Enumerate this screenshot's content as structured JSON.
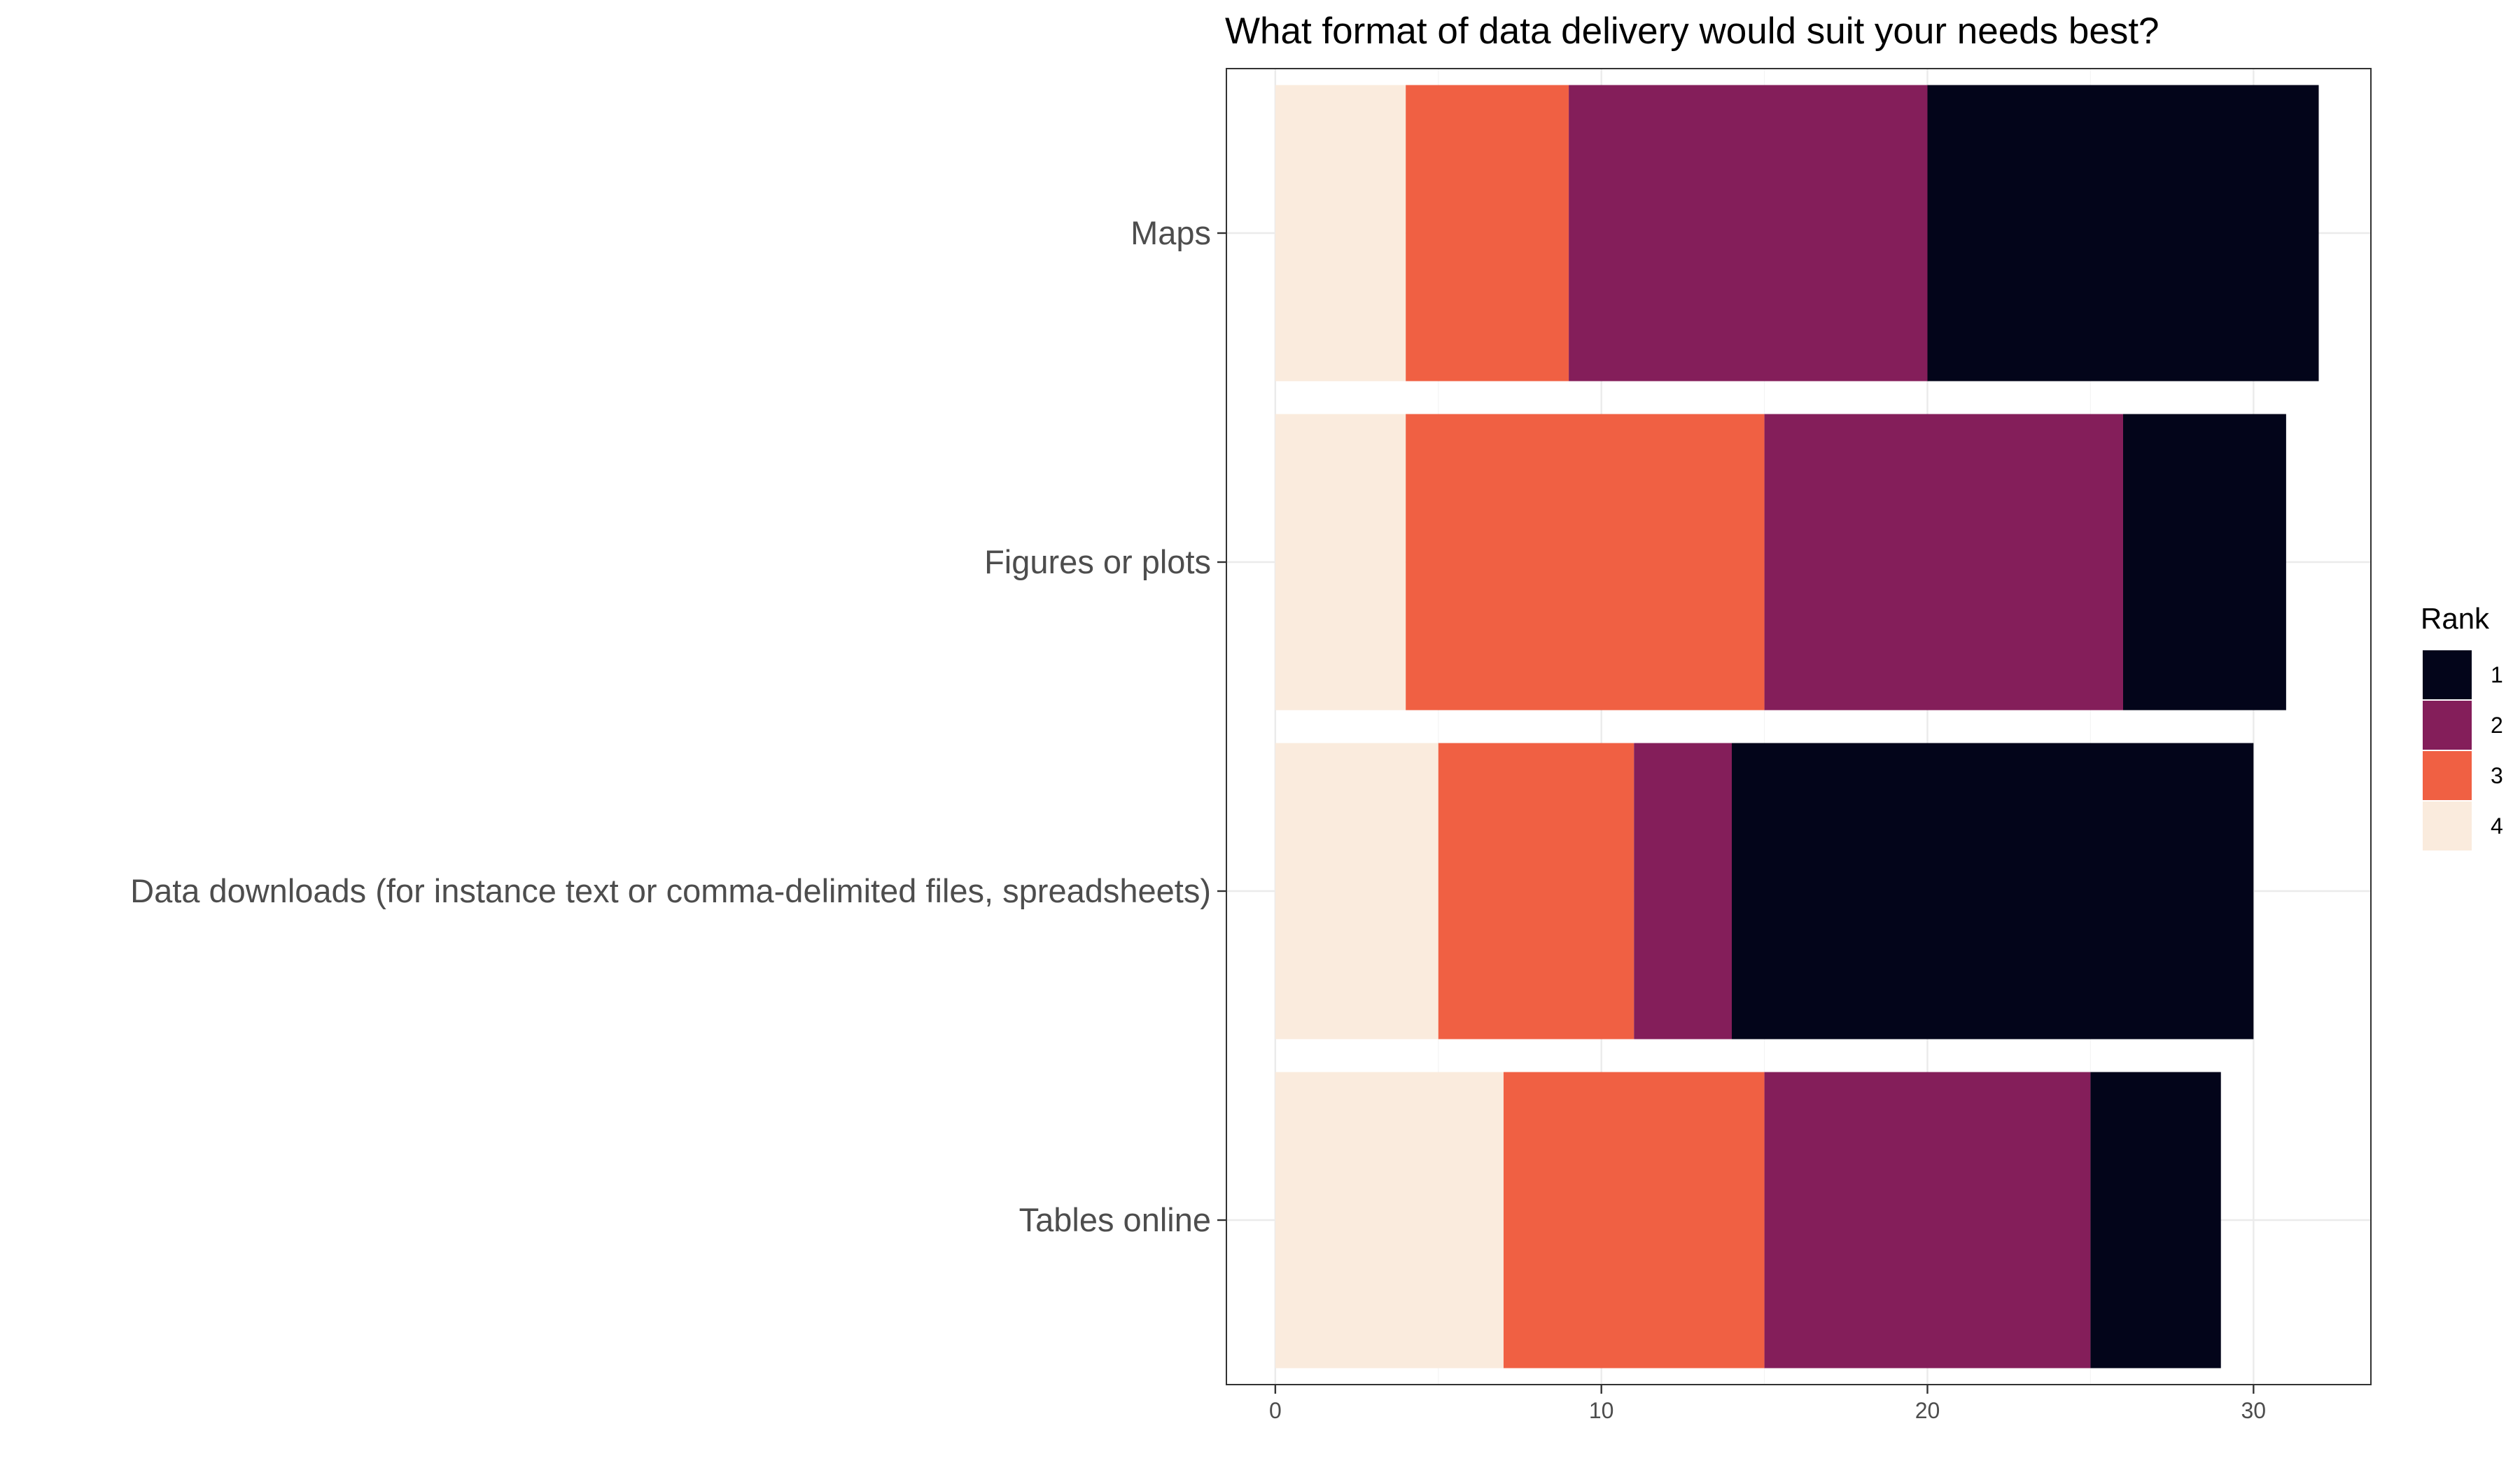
{
  "chart_data": {
    "type": "bar",
    "orientation": "horizontal",
    "stacked": true,
    "title": "What format of data delivery would suit your needs best?",
    "xlabel": "",
    "ylabel": "",
    "categories": [
      "Maps",
      "Figures or plots",
      "Data downloads (for instance text or comma-delimited files, spreadsheets)",
      "Tables online"
    ],
    "series": [
      {
        "name": "4",
        "color": "#FAEBDD",
        "values": [
          4,
          4,
          5,
          7
        ]
      },
      {
        "name": "3",
        "color": "#F06043",
        "values": [
          5,
          11,
          6,
          8
        ]
      },
      {
        "name": "2",
        "color": "#841E5A",
        "values": [
          11,
          11,
          3,
          10
        ]
      },
      {
        "name": "1",
        "color": "#03051A",
        "values": [
          12,
          5,
          16,
          4
        ]
      }
    ],
    "xlim": [
      -1.5,
      33.6
    ],
    "xticks": [
      0,
      10,
      20,
      30
    ],
    "grid": true,
    "legend": {
      "title": "Rank",
      "position": "right",
      "entries": [
        {
          "label": "1",
          "color": "#03051A"
        },
        {
          "label": "2",
          "color": "#841E5A"
        },
        {
          "label": "3",
          "color": "#F06043"
        },
        {
          "label": "4",
          "color": "#FAEBDD"
        }
      ]
    }
  }
}
